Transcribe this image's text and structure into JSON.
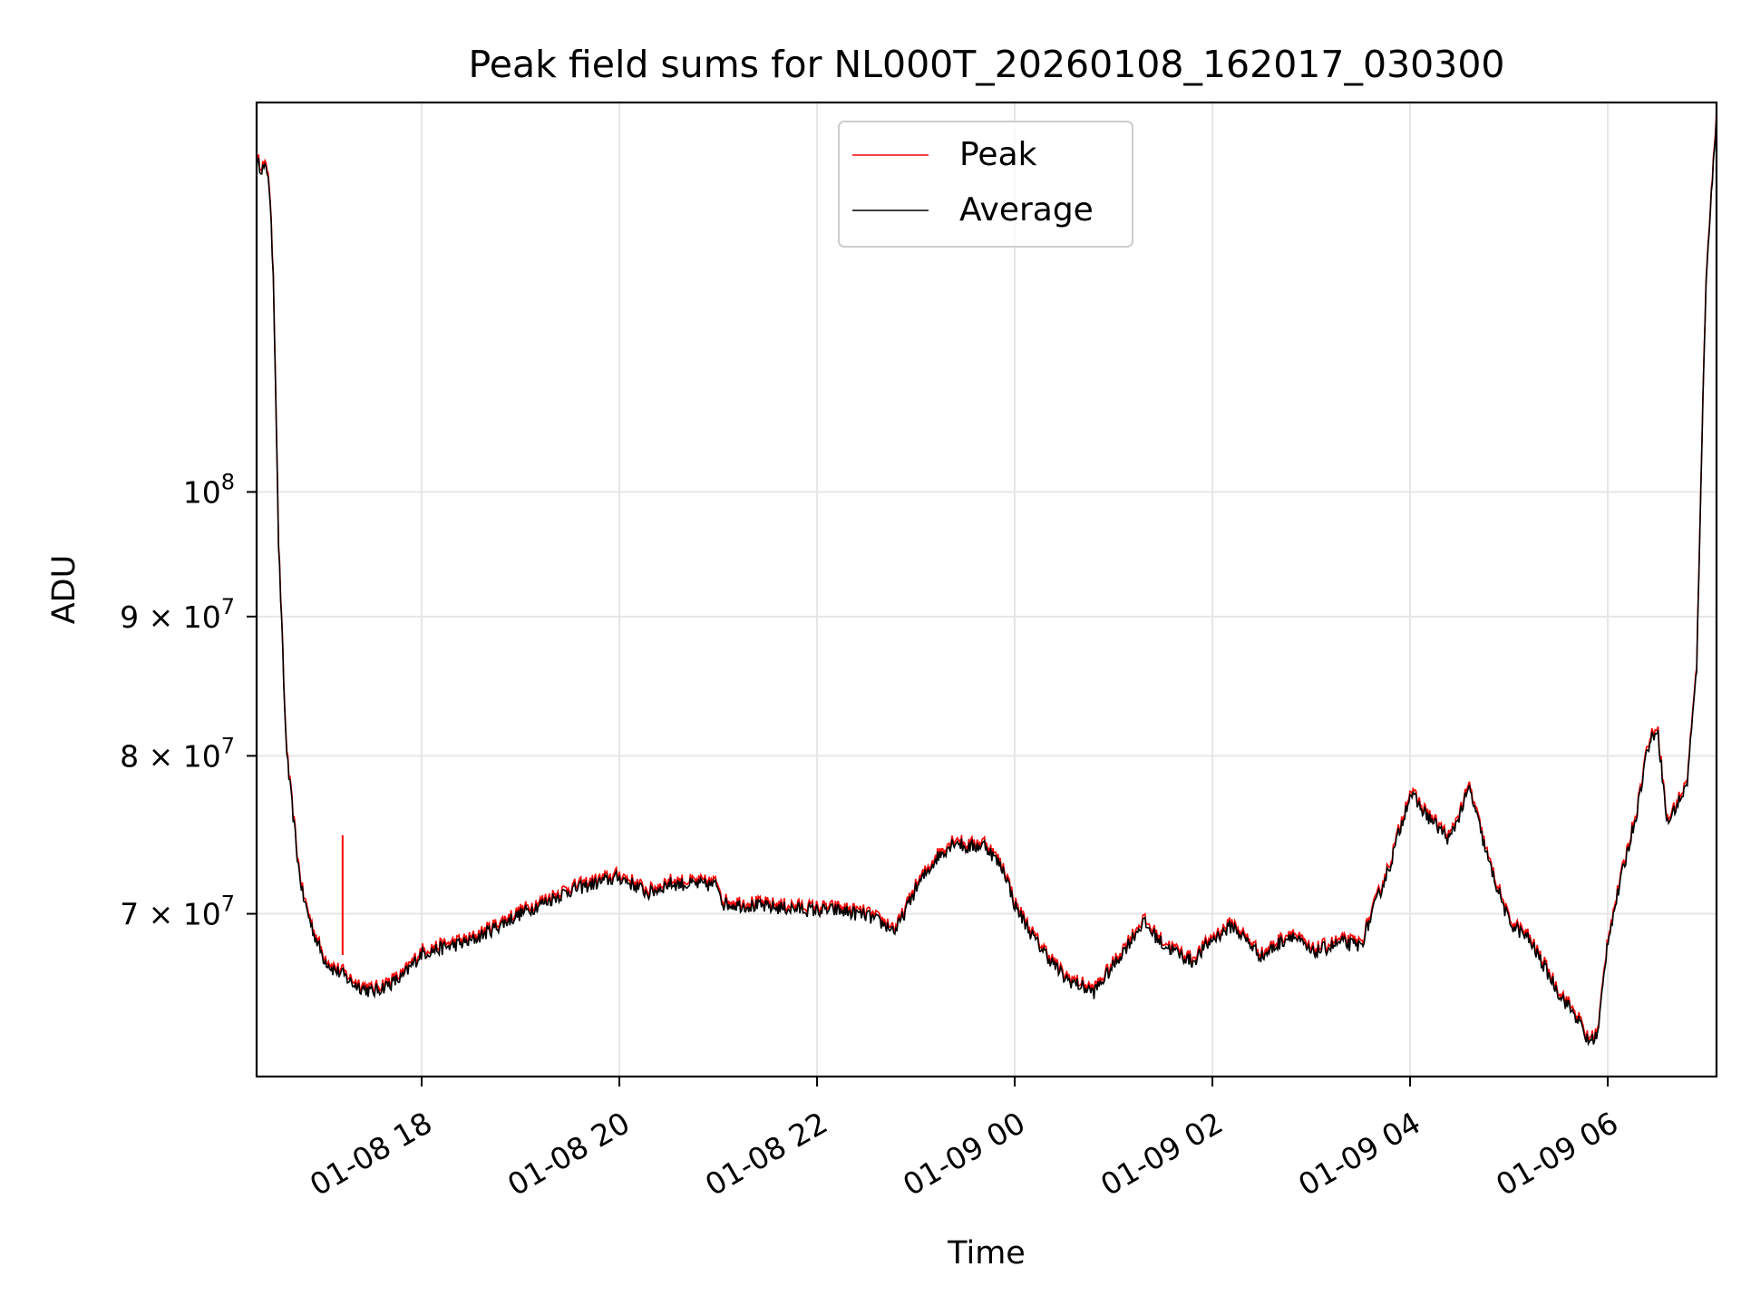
{
  "chart_data": {
    "type": "line",
    "title": "Peak field sums for NL000T_20260108_162017_030300",
    "xlabel": "Time",
    "ylabel": "ADU",
    "yscale": "log",
    "x_units": "hours since 2026-01-08 00:00",
    "xlim": [
      16.33,
      31.1
    ],
    "ylim": [
      61000000,
      139000000
    ],
    "x_ticks": [
      {
        "value": 18,
        "label": "01-08 18"
      },
      {
        "value": 20,
        "label": "01-08 20"
      },
      {
        "value": 22,
        "label": "01-08 22"
      },
      {
        "value": 24,
        "label": "01-09 00"
      },
      {
        "value": 26,
        "label": "01-09 02"
      },
      {
        "value": 28,
        "label": "01-09 04"
      },
      {
        "value": 30,
        "label": "01-09 06"
      }
    ],
    "y_ticks": [
      {
        "value": 70000000,
        "mantissa": "7",
        "exponent": "7"
      },
      {
        "value": 80000000,
        "mantissa": "8",
        "exponent": "7"
      },
      {
        "value": 90000000,
        "mantissa": "9",
        "exponent": "7"
      },
      {
        "value": 100000000,
        "mantissa": "",
        "exponent": "8"
      }
    ],
    "y_tick_times": "×",
    "y_tick_base": "10",
    "grid": true,
    "legend_position": "upper center",
    "series": [
      {
        "name": "Peak",
        "color": "#ff0000",
        "spike": {
          "x": 17.2,
          "y_low": 67600000,
          "y_high": 74800000
        }
      },
      {
        "name": "Average",
        "color": "#000000"
      }
    ],
    "x": [
      16.33,
      16.45,
      16.5,
      16.55,
      16.62,
      16.65,
      16.7,
      16.75,
      16.8,
      16.9,
      17.0,
      17.1,
      17.2,
      17.3,
      17.5,
      17.8,
      18.0,
      18.5,
      19.0,
      19.5,
      20.0,
      20.3,
      20.5,
      21.0,
      21.05,
      21.5,
      22.0,
      22.2,
      22.5,
      22.8,
      23.0,
      23.2,
      23.4,
      23.5,
      23.7,
      23.9,
      24.0,
      24.2,
      24.5,
      24.8,
      25.0,
      25.3,
      25.5,
      25.8,
      26.0,
      26.2,
      26.5,
      26.8,
      27.0,
      27.3,
      27.5,
      27.8,
      28.0,
      28.15,
      28.4,
      28.6,
      28.8,
      29.0,
      29.2,
      29.5,
      29.7,
      29.8,
      29.9,
      30.0,
      30.2,
      30.3,
      30.4,
      30.5,
      30.6,
      30.8,
      30.9,
      31.0,
      31.1
    ],
    "values": [
      132000000,
      131000000,
      120000000,
      96000000,
      82000000,
      79000000,
      76000000,
      73000000,
      71000000,
      69000000,
      67500000,
      66800000,
      66500000,
      66000000,
      65500000,
      66300000,
      67700000,
      68400000,
      70000000,
      71400000,
      72200000,
      71200000,
      71800000,
      71700000,
      70600000,
      70400000,
      70200000,
      70200000,
      69900000,
      69000000,
      71500000,
      73300000,
      74500000,
      74000000,
      74200000,
      72500000,
      70500000,
      68500000,
      66300000,
      65500000,
      67000000,
      69500000,
      68200000,
      67200000,
      68500000,
      69300000,
      67500000,
      68800000,
      67700000,
      68300000,
      68100000,
      73000000,
      77500000,
      76200000,
      74500000,
      77800000,
      73000000,
      69500000,
      68500000,
      65500000,
      64000000,
      62800000,
      63200000,
      68500000,
      73800000,
      76500000,
      80500000,
      82000000,
      75500000,
      78000000,
      86000000,
      121000000,
      137000000
    ]
  }
}
